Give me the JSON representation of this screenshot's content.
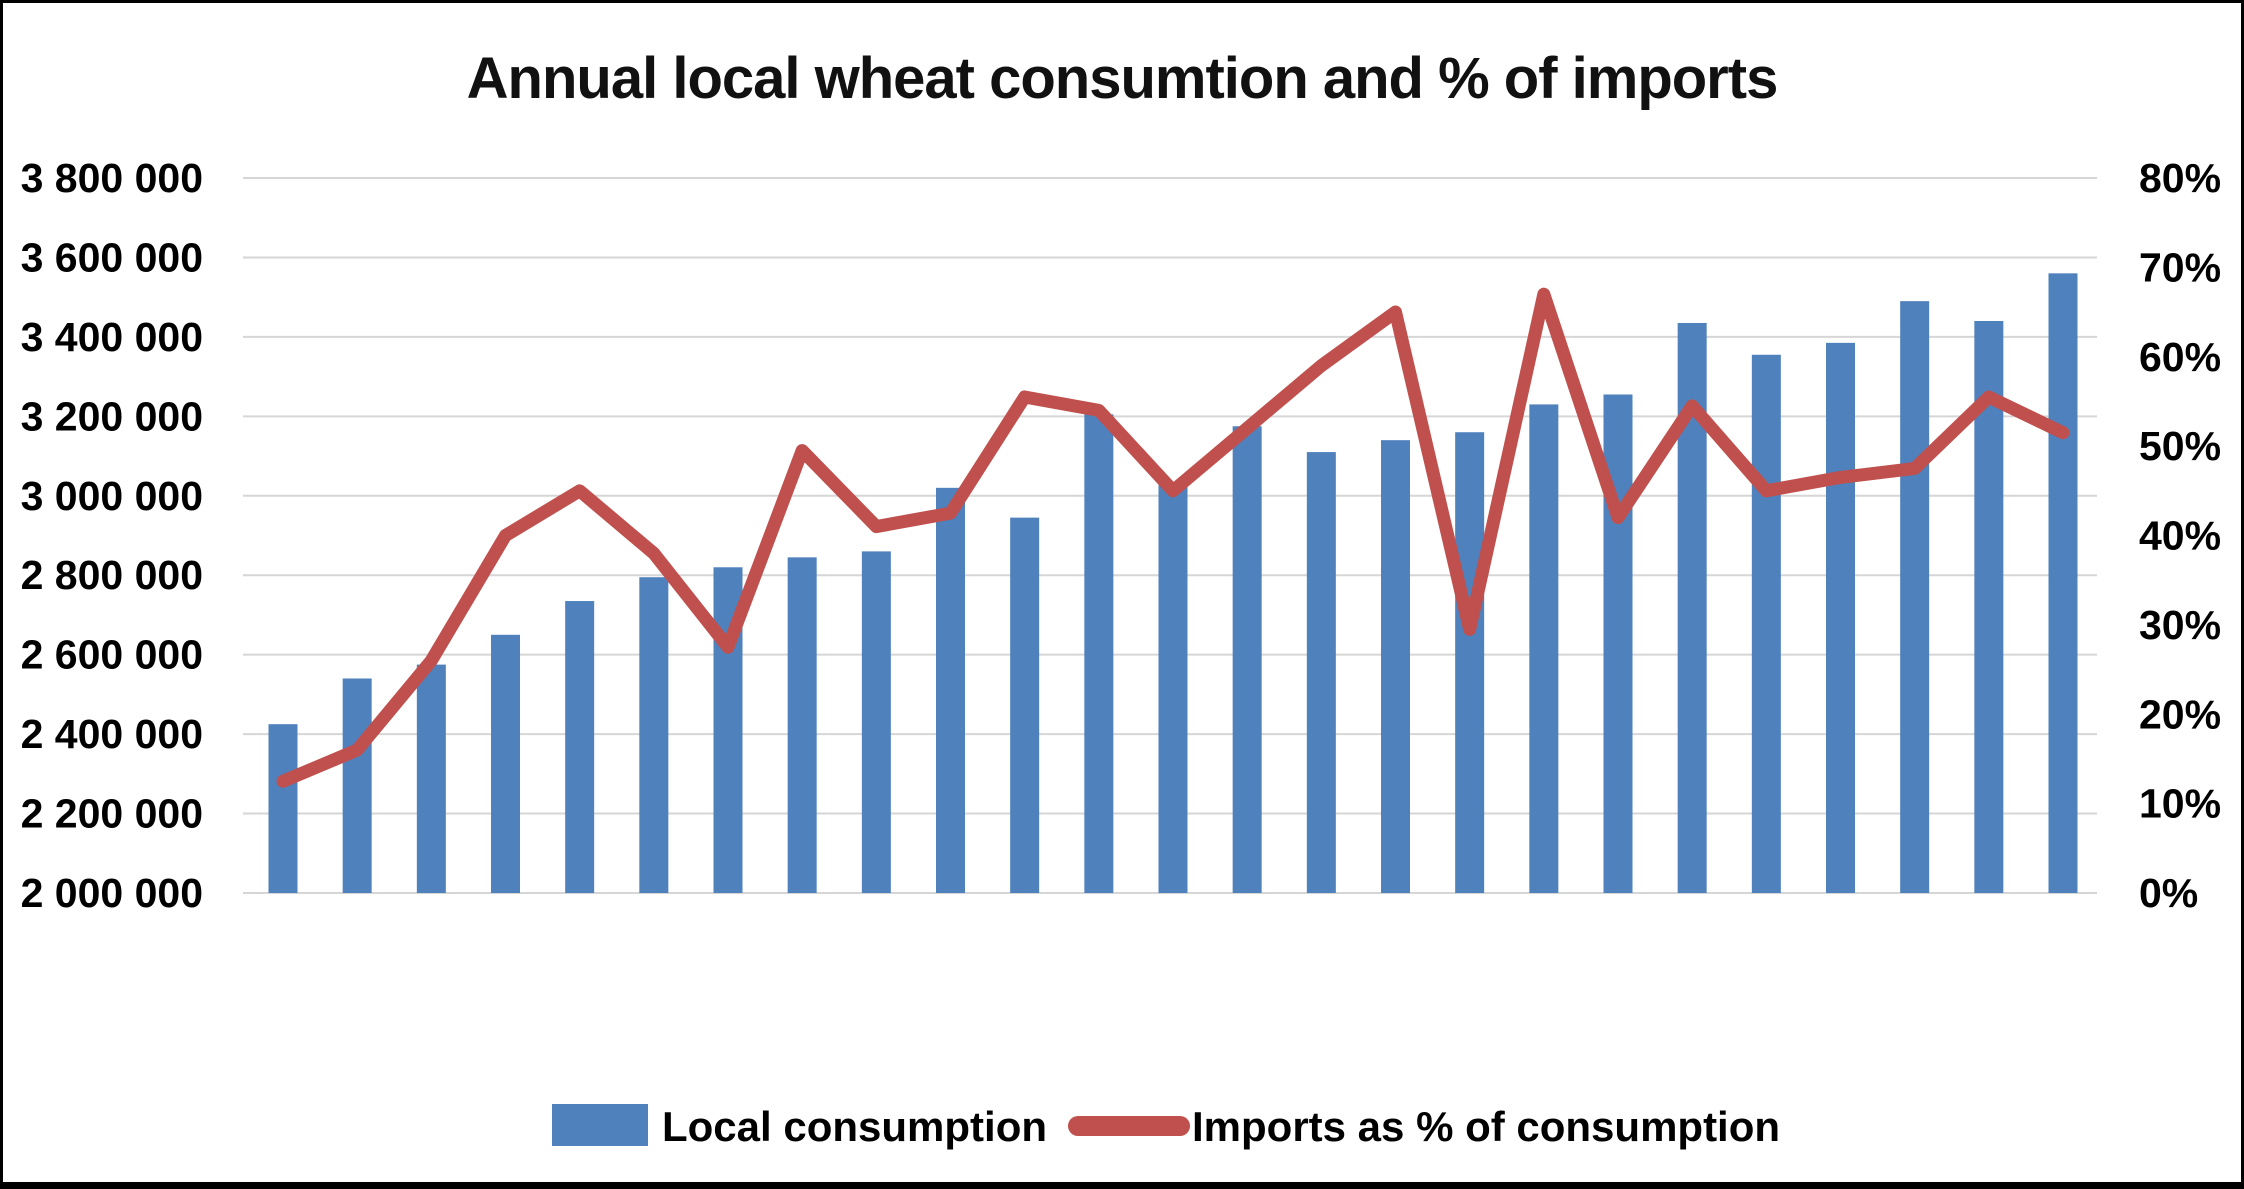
{
  "title": "Annual local wheat consumtion and % of imports",
  "legend": {
    "items": [
      {
        "label": "Local consumption",
        "marker": "rect",
        "color": "#4F81BD"
      },
      {
        "label": "Imports as % of consumption",
        "marker": "line",
        "color": "#C0504D"
      }
    ]
  },
  "chart_data": {
    "type": "combo-bar-line",
    "title": "Annual local wheat consumtion and % of imports",
    "n_points": 25,
    "categories_visible": false,
    "gridlines": "horizontal",
    "legend_position": "bottom",
    "series": [
      {
        "name": "Local consumption",
        "type": "bar",
        "axis": "left",
        "color": "#4F81BD",
        "values": [
          2425000,
          2540000,
          2575000,
          2650000,
          2735000,
          2795000,
          2820000,
          2845000,
          2860000,
          3020000,
          2945000,
          3205000,
          3035000,
          3175000,
          3110000,
          3140000,
          3160000,
          3230000,
          3255000,
          3435000,
          3355000,
          3385000,
          3490000,
          3440000,
          3560000
        ]
      },
      {
        "name": "Imports as % of consumption",
        "type": "line",
        "axis": "right",
        "unit": "%",
        "color": "#C0504D",
        "values": [
          12.5,
          16,
          26,
          40,
          45,
          38,
          27.5,
          49.5,
          41,
          42.5,
          55.5,
          54,
          45,
          52,
          59,
          65,
          29.5,
          67,
          42,
          54.5,
          45,
          46.5,
          47.5,
          55.5,
          51.5
        ]
      }
    ],
    "left_axis": {
      "min": 2000000,
      "max": 3800000,
      "step": 200000,
      "tick_labels": [
        "3 800 000",
        "3 600 000",
        "3 400 000",
        "3 200 000",
        "3 000 000",
        "2 800 000",
        "2 600 000",
        "2 400 000",
        "2 200 000",
        "2 000 000"
      ]
    },
    "right_axis": {
      "min": 0,
      "max": 80,
      "step": 10,
      "tick_labels": [
        "80%",
        "70%",
        "60%",
        "50%",
        "40%",
        "30%",
        "20%",
        "10%",
        "0%"
      ]
    }
  },
  "colors": {
    "bar": "#4F81BD",
    "line": "#C0504D",
    "gridline": "#D6D6D6",
    "text": "#000000",
    "background": "#FFFFFF",
    "border": "#000000"
  }
}
